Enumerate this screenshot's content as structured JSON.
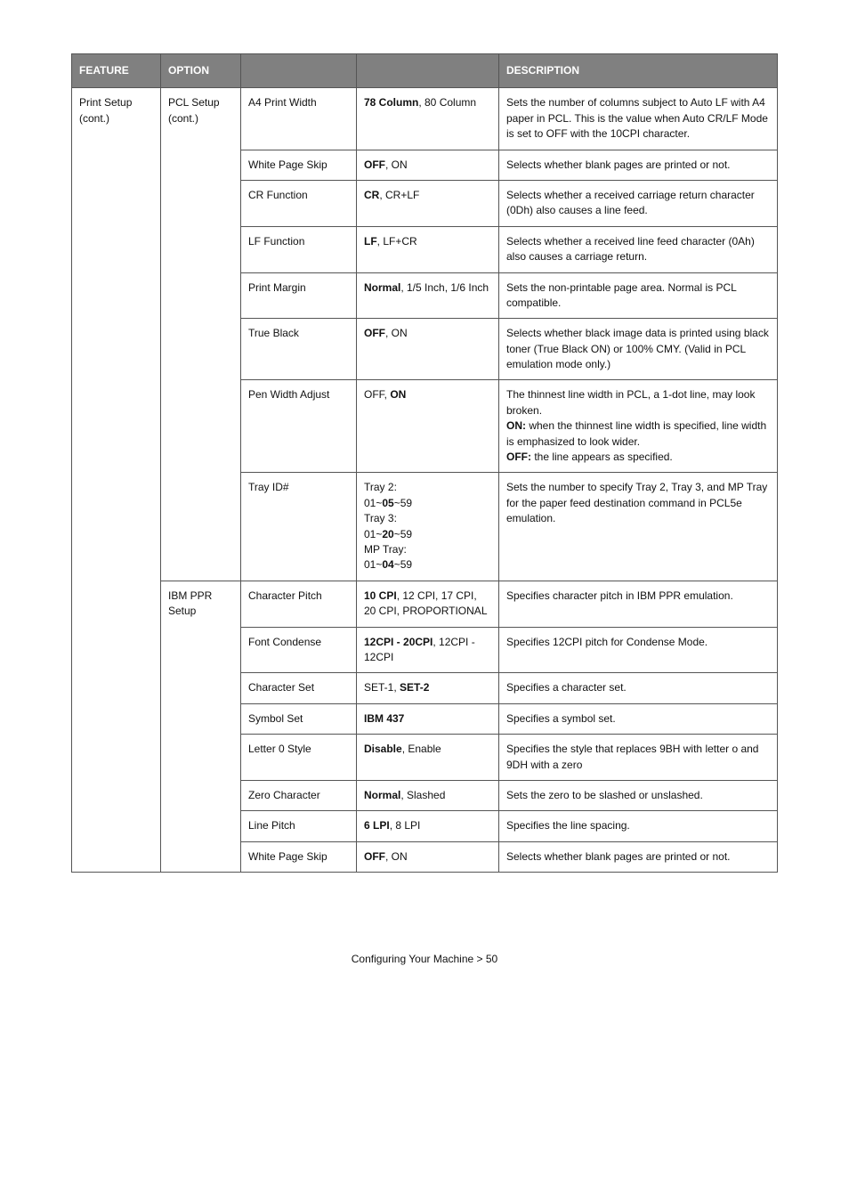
{
  "header": {
    "feature": "FEATURE",
    "option": "OPTION",
    "col3": "",
    "col4": "",
    "description": "DESCRIPTION"
  },
  "col1": {
    "print_setup": "Print Setup (cont.)"
  },
  "col2": {
    "pcl_setup": "PCL Setup (cont.)",
    "ibm_ppr": "IBM PPR Setup"
  },
  "rows": [
    {
      "c3": "A4 Print Width",
      "c4": "<b>78 Column</b>, 80 Column",
      "c5": "Sets the number of columns subject to Auto LF with A4 paper in PCL. This is the value when Auto CR/LF Mode is set to OFF with the 10CPI character."
    },
    {
      "c3": "White Page Skip",
      "c4": "<b>OFF</b>, ON",
      "c5": "Selects whether blank pages are printed or not."
    },
    {
      "c3": "CR Function",
      "c4": "<b>CR</b>, CR+LF",
      "c5": "Selects whether a received carriage return character (0Dh) also causes a line feed."
    },
    {
      "c3": "LF Function",
      "c4": "<b>LF</b>, LF+CR",
      "c5": "Selects whether a received line feed character (0Ah) also causes a carriage return."
    },
    {
      "c3": "Print Margin",
      "c4": "<b>Normal</b>, 1/5 Inch, 1/6 Inch",
      "c5": "Sets the non-printable page area. Normal is PCL compatible."
    },
    {
      "c3": "True Black",
      "c4": "<b>OFF</b>, ON",
      "c5": "Selects whether black image data is printed using black toner (True Black ON) or 100% CMY. (Valid in PCL emulation mode only.)"
    },
    {
      "c3": "Pen Width Adjust",
      "c4": "OFF, <b>ON</b>",
      "c5": "The thinnest line width in PCL, a 1-dot line, may look broken.<br><b>ON:</b> when the thinnest line width is specified, line width is emphasized to look wider.<br><b>OFF:</b> the line appears as specified."
    },
    {
      "c3": "Tray ID#",
      "c4": "Tray 2:<br>01~<b>05</b>~59<br>Tray 3:<br>01~<b>20</b>~59<br>MP Tray:<br>01~<b>04</b>~59",
      "c5": "Sets the number to specify Tray 2, Tray 3, and MP Tray for the paper feed destination command in PCL5e emulation."
    },
    {
      "c3": "Character Pitch",
      "c4": "<b>10 CPI</b>, 12 CPI, 17 CPI, 20 CPI, PROPORTIONAL",
      "c5": "Specifies character pitch in IBM PPR emulation."
    },
    {
      "c3": "Font Condense",
      "c4": "<b>12CPI - 20CPI</b>, 12CPI - 12CPI",
      "c5": "Specifies 12CPI pitch for Condense Mode."
    },
    {
      "c3": "Character Set",
      "c4": "SET-1, <b>SET-2</b>",
      "c5": "Specifies a character set."
    },
    {
      "c3": "Symbol Set",
      "c4": "<b>IBM 437</b>",
      "c5": "Specifies a symbol set."
    },
    {
      "c3": "Letter 0 Style",
      "c4": "<b>Disable</b>, Enable",
      "c5": "Specifies the style that replaces 9BH with letter o and 9DH with a zero"
    },
    {
      "c3": "Zero Character",
      "c4": "<b>Normal</b>, Slashed",
      "c5": "Sets the zero to be slashed or unslashed."
    },
    {
      "c3": "Line Pitch",
      "c4": "<b>6 LPI</b>, 8 LPI",
      "c5": "Specifies the line spacing."
    },
    {
      "c3": "White Page Skip",
      "c4": "<b>OFF</b>, ON",
      "c5": "Selects whether blank pages are printed or not."
    }
  ],
  "footer": "Configuring Your Machine > 50"
}
